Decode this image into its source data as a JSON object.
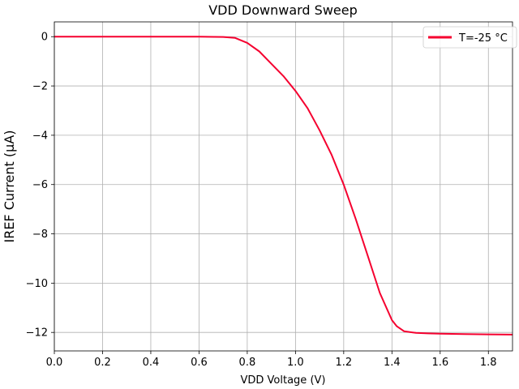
{
  "chart_data": {
    "type": "line",
    "title": "VDD Downward Sweep",
    "xlabel": "VDD Voltage (V)",
    "ylabel": "IREF Current (µA)",
    "xlim": [
      0.0,
      1.9
    ],
    "ylim": [
      -12.75,
      0.6
    ],
    "xticks": [
      0.0,
      0.2,
      0.4,
      0.6,
      0.8,
      1.0,
      1.2,
      1.4,
      1.6,
      1.8
    ],
    "xtick_labels": [
      "0.0",
      "0.2",
      "0.4",
      "0.6",
      "0.8",
      "1.0",
      "1.2",
      "1.4",
      "1.6",
      "1.8"
    ],
    "yticks": [
      0,
      -2,
      -4,
      -6,
      -8,
      -10,
      -12
    ],
    "ytick_labels": [
      "0",
      "−2",
      "−4",
      "−6",
      "−8",
      "−10",
      "−12"
    ],
    "grid": true,
    "legend_position": "top-right",
    "series": [
      {
        "name": "T=-25 °C",
        "color": "#f5002f",
        "x": [
          0.0,
          0.1,
          0.2,
          0.3,
          0.4,
          0.5,
          0.6,
          0.7,
          0.75,
          0.8,
          0.85,
          0.9,
          0.95,
          1.0,
          1.05,
          1.1,
          1.15,
          1.2,
          1.25,
          1.3,
          1.35,
          1.4,
          1.42,
          1.45,
          1.5,
          1.55,
          1.6,
          1.7,
          1.8,
          1.9
        ],
        "y": [
          0.0,
          0.0,
          0.0,
          0.0,
          0.0,
          0.0,
          0.0,
          -0.01,
          -0.05,
          -0.25,
          -0.6,
          -1.1,
          -1.6,
          -2.2,
          -2.9,
          -3.8,
          -4.8,
          -6.0,
          -7.4,
          -8.9,
          -10.4,
          -11.5,
          -11.75,
          -11.95,
          -12.02,
          -12.04,
          -12.05,
          -12.07,
          -12.08,
          -12.09
        ]
      }
    ]
  }
}
